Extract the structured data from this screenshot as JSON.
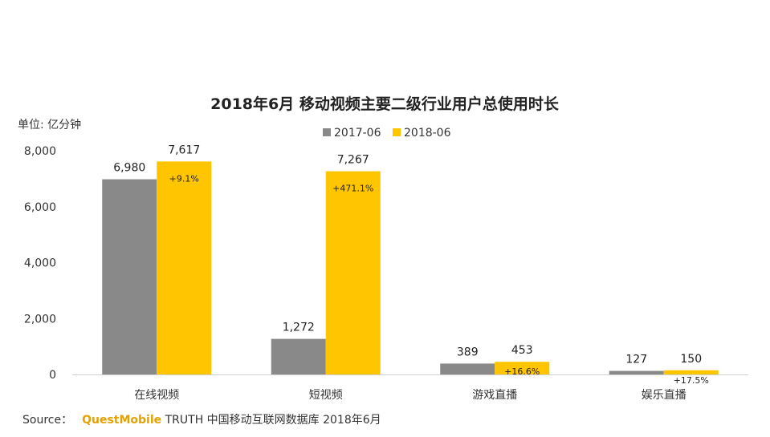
{
  "chart_data": {
    "type": "bar",
    "title": "2018年6月 移动视频主要二级行业用户总使用时长",
    "unit_label": "单位: 亿分钟",
    "categories": [
      "在线视频",
      "短视频",
      "游戏直播",
      "娱乐直播"
    ],
    "series": [
      {
        "name": "2017-06",
        "color": "#898989",
        "values": [
          6980,
          1272,
          389,
          127
        ],
        "labels": [
          "6,980",
          "1,272",
          "389",
          "127"
        ]
      },
      {
        "name": "2018-06",
        "color": "#ffc600",
        "values": [
          7617,
          7267,
          453,
          150
        ],
        "labels": [
          "7,617",
          "7,267",
          "453",
          "150"
        ]
      }
    ],
    "growth_labels": [
      "+9.1%",
      "+471.1%",
      "+16.6%",
      "+17.5%"
    ],
    "yticks": [
      0,
      2000,
      4000,
      6000,
      8000
    ],
    "ytick_labels": [
      "0",
      "2,000",
      "4,000",
      "6,000",
      "8,000"
    ],
    "ylim": [
      0,
      8000
    ],
    "legend_position": "top-center",
    "grid": false
  },
  "source": {
    "prefix": "Source：",
    "brand": "QuestMobile",
    "text": "TRUTH 中国移动互联网数据库 2018年6月"
  }
}
